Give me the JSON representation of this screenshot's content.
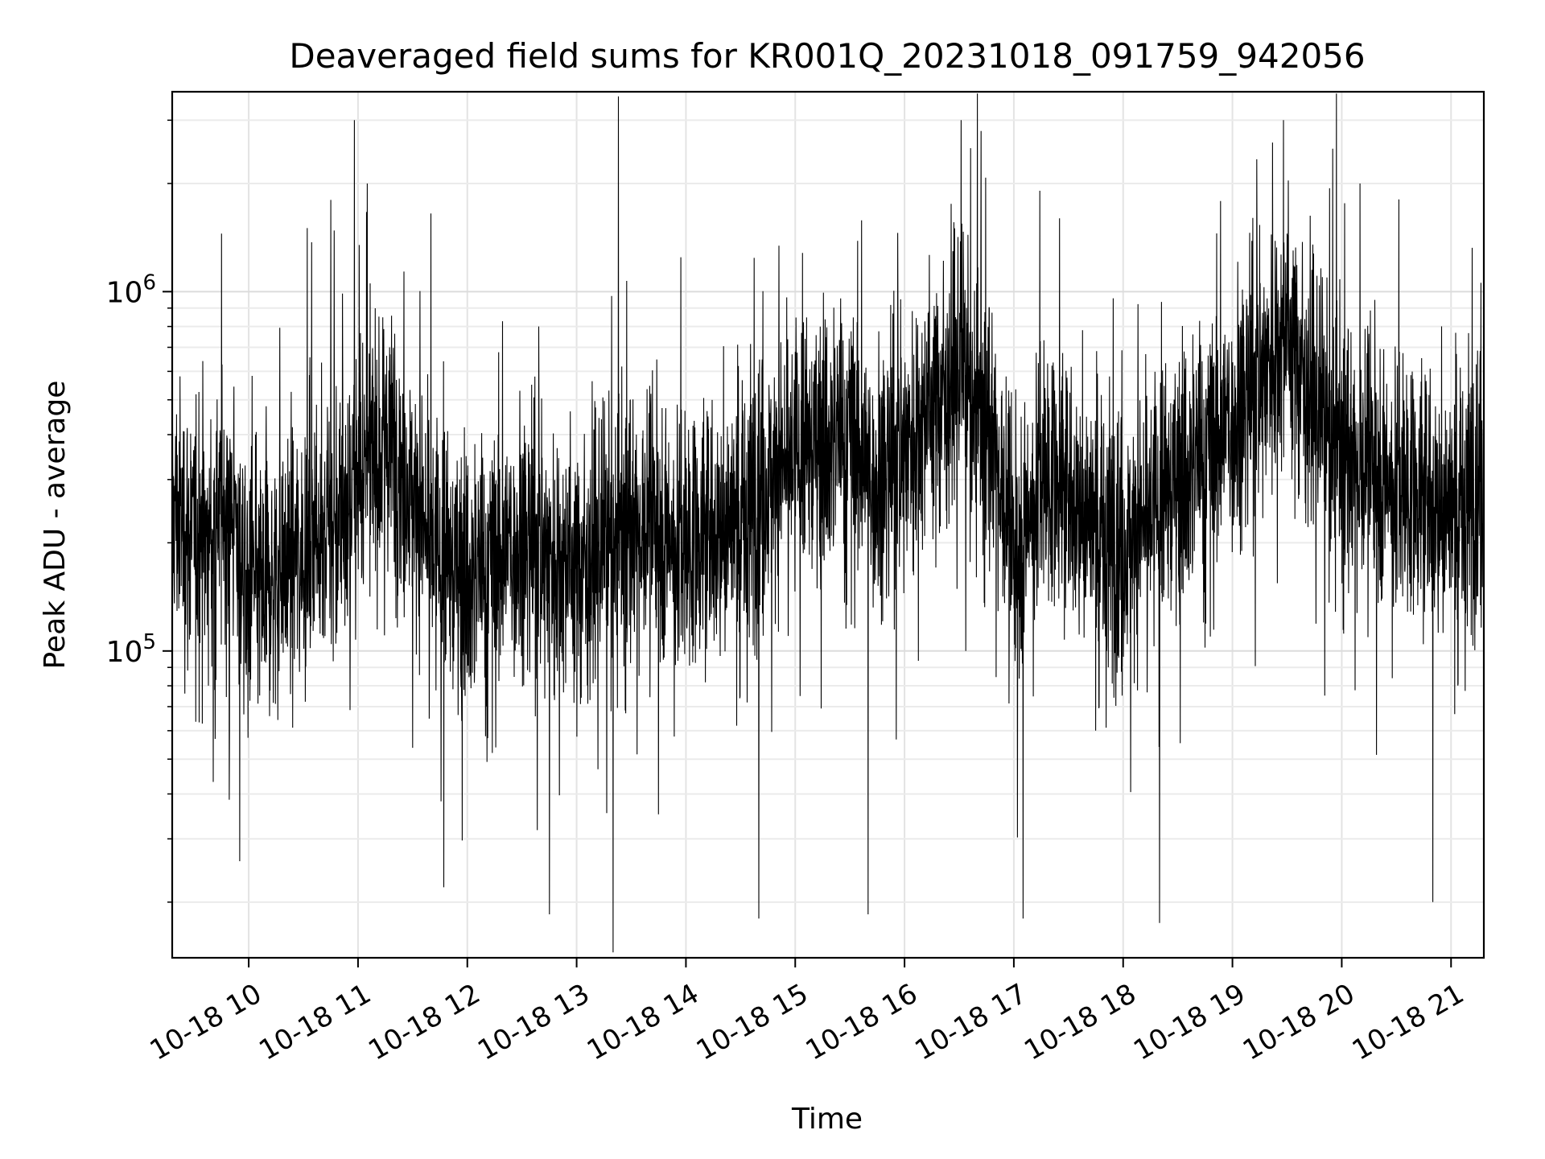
{
  "chart_data": {
    "type": "line",
    "title": "Deaveraged field sums for KR001Q_20231018_091759_942056",
    "xlabel": "Time",
    "ylabel": "Peak ADU - average",
    "xscale": "time",
    "yscale": "log",
    "grid": true,
    "xlim": [
      "2023-10-18T09:18:00",
      "2023-10-18T21:18:00"
    ],
    "ylim": [
      14000,
      3600000
    ],
    "x_ticks": [
      "10-18 10",
      "10-18 11",
      "10-18 12",
      "10-18 13",
      "10-18 14",
      "10-18 15",
      "10-18 16",
      "10-18 17",
      "10-18 18",
      "10-18 19",
      "10-18 20",
      "10-18 21"
    ],
    "y_ticks": [
      {
        "value": 100000,
        "base": "10",
        "exp": "5"
      },
      {
        "value": 1000000,
        "base": "10",
        "exp": "6"
      }
    ],
    "series": [
      {
        "color": "#000000",
        "sample_interval_seconds": 8,
        "start": "2023-10-18T09:18:00",
        "trend": [
          {
            "x": "2023-10-18T09:18:00",
            "y": 250000
          },
          {
            "x": "2023-10-18T09:35:00",
            "y": 190000
          },
          {
            "x": "2023-10-18T09:50:00",
            "y": 270000
          },
          {
            "x": "2023-10-18T10:00:00",
            "y": 140000
          },
          {
            "x": "2023-10-18T10:20:00",
            "y": 170000
          },
          {
            "x": "2023-10-18T10:35:00",
            "y": 210000
          },
          {
            "x": "2023-10-18T10:50:00",
            "y": 220000
          },
          {
            "x": "2023-10-18T11:05:00",
            "y": 330000
          },
          {
            "x": "2023-10-18T11:20:00",
            "y": 380000
          },
          {
            "x": "2023-10-18T11:40:00",
            "y": 190000
          },
          {
            "x": "2023-10-18T12:00:00",
            "y": 160000
          },
          {
            "x": "2023-10-18T12:30:00",
            "y": 210000
          },
          {
            "x": "2023-10-18T13:00:00",
            "y": 170000
          },
          {
            "x": "2023-10-18T13:30:00",
            "y": 230000
          },
          {
            "x": "2023-10-18T14:00:00",
            "y": 200000
          },
          {
            "x": "2023-10-18T14:30:00",
            "y": 240000
          },
          {
            "x": "2023-10-18T15:00:00",
            "y": 350000
          },
          {
            "x": "2023-10-18T15:30:00",
            "y": 420000
          },
          {
            "x": "2023-10-18T15:45:00",
            "y": 300000
          },
          {
            "x": "2023-10-18T16:00:00",
            "y": 380000
          },
          {
            "x": "2023-10-18T16:30:00",
            "y": 620000
          },
          {
            "x": "2023-10-18T16:50:00",
            "y": 380000
          },
          {
            "x": "2023-10-18T17:00:00",
            "y": 170000
          },
          {
            "x": "2023-10-18T17:15:00",
            "y": 320000
          },
          {
            "x": "2023-10-18T17:35:00",
            "y": 260000
          },
          {
            "x": "2023-10-18T18:00:00",
            "y": 190000
          },
          {
            "x": "2023-10-18T18:30:00",
            "y": 300000
          },
          {
            "x": "2023-10-18T19:00:00",
            "y": 450000
          },
          {
            "x": "2023-10-18T19:30:00",
            "y": 780000
          },
          {
            "x": "2023-10-18T19:50:00",
            "y": 430000
          },
          {
            "x": "2023-10-18T20:10:00",
            "y": 330000
          },
          {
            "x": "2023-10-18T20:40:00",
            "y": 280000
          },
          {
            "x": "2023-10-18T21:00:00",
            "y": 250000
          },
          {
            "x": "2023-10-18T21:18:00",
            "y": 300000
          }
        ],
        "spikes": [
          {
            "x": "2023-10-18T10:58:00",
            "y": 3000000
          },
          {
            "x": "2023-10-18T11:05:00",
            "y": 2000000
          },
          {
            "x": "2023-10-18T10:45:00",
            "y": 1800000
          },
          {
            "x": "2023-10-18T11:40:00",
            "y": 1650000
          },
          {
            "x": "2023-10-18T09:45:00",
            "y": 1450000
          },
          {
            "x": "2023-10-18T16:31:00",
            "y": 3000000
          },
          {
            "x": "2023-10-18T16:42:00",
            "y": 2800000
          },
          {
            "x": "2023-10-18T19:28:00",
            "y": 3000000
          },
          {
            "x": "2023-10-18T19:22:00",
            "y": 2600000
          },
          {
            "x": "2023-10-18T19:55:00",
            "y": 2500000
          },
          {
            "x": "2023-10-18T20:10:00",
            "y": 2000000
          },
          {
            "x": "2023-10-18T17:25:00",
            "y": 1600000
          },
          {
            "x": "2023-10-18T13:20:00",
            "y": 14500
          },
          {
            "x": "2023-10-18T17:05:00",
            "y": 18000
          },
          {
            "x": "2023-10-18T18:20:00",
            "y": 17500
          },
          {
            "x": "2023-10-18T15:40:00",
            "y": 18500
          },
          {
            "x": "2023-10-18T14:40:00",
            "y": 18000
          },
          {
            "x": "2023-10-18T12:45:00",
            "y": 18500
          },
          {
            "x": "2023-10-18T11:47:00",
            "y": 22000
          },
          {
            "x": "2023-10-18T20:50:00",
            "y": 20000
          },
          {
            "x": "2023-10-18T09:55:00",
            "y": 26000
          }
        ]
      }
    ]
  }
}
